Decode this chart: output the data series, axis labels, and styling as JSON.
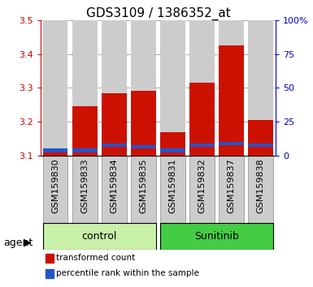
{
  "title": "GDS3109 / 1386352_at",
  "samples": [
    "GSM159830",
    "GSM159833",
    "GSM159834",
    "GSM159835",
    "GSM159831",
    "GSM159832",
    "GSM159837",
    "GSM159838"
  ],
  "red_values": [
    3.115,
    3.245,
    3.285,
    3.29,
    3.17,
    3.315,
    3.425,
    3.205
  ],
  "blue_values": [
    0.012,
    0.01,
    0.01,
    0.01,
    0.01,
    0.01,
    0.01,
    0.01
  ],
  "blue_bottoms": [
    3.11,
    3.11,
    3.125,
    3.12,
    3.11,
    3.125,
    3.13,
    3.125
  ],
  "ymin": 3.1,
  "ymax": 3.5,
  "yticks": [
    3.1,
    3.2,
    3.3,
    3.4,
    3.5
  ],
  "y2ticks": [
    0,
    25,
    50,
    75,
    100
  ],
  "groups": [
    {
      "label": "control",
      "indices": [
        0,
        1,
        2,
        3
      ],
      "color": "#c8f0a8"
    },
    {
      "label": "Sunitinib",
      "indices": [
        4,
        5,
        6,
        7
      ],
      "color": "#44cc44"
    }
  ],
  "bar_color_red": "#cc1100",
  "bar_color_blue": "#2255cc",
  "bar_bg_color": "#cccccc",
  "bar_width": 0.85,
  "group_label_name": "agent",
  "legend_items": [
    {
      "color": "#cc1100",
      "label": "transformed count"
    },
    {
      "color": "#2255cc",
      "label": "percentile rank within the sample"
    }
  ],
  "title_fontsize": 11,
  "tick_fontsize": 8,
  "axis_color_left": "#cc0000",
  "axis_color_right": "#0000cc"
}
